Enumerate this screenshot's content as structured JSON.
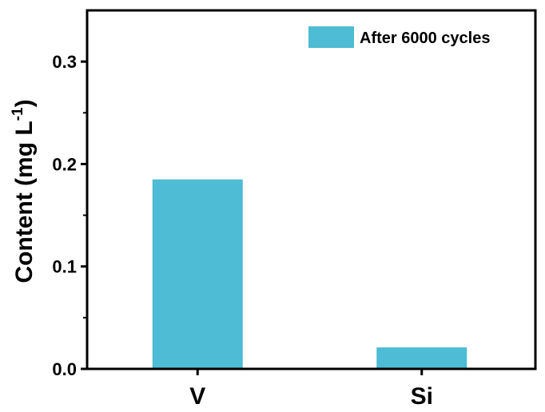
{
  "chart_data": {
    "type": "bar",
    "categories": [
      "V",
      "Si"
    ],
    "series": [
      {
        "name": "After 6000 cycles",
        "values": [
          0.185,
          0.021
        ],
        "color": "#4dbcd4"
      }
    ],
    "ylabel_main": "Content (mg L",
    "ylabel_sup": "-1",
    "ylabel_close": ")",
    "ylim": [
      0,
      0.35
    ],
    "yticks": [
      "0.0",
      "0.1",
      "0.2",
      "0.3"
    ],
    "ytick_values": [
      0,
      0.1,
      0.2,
      0.3
    ],
    "legend_position": "top-right",
    "grid": false
  }
}
